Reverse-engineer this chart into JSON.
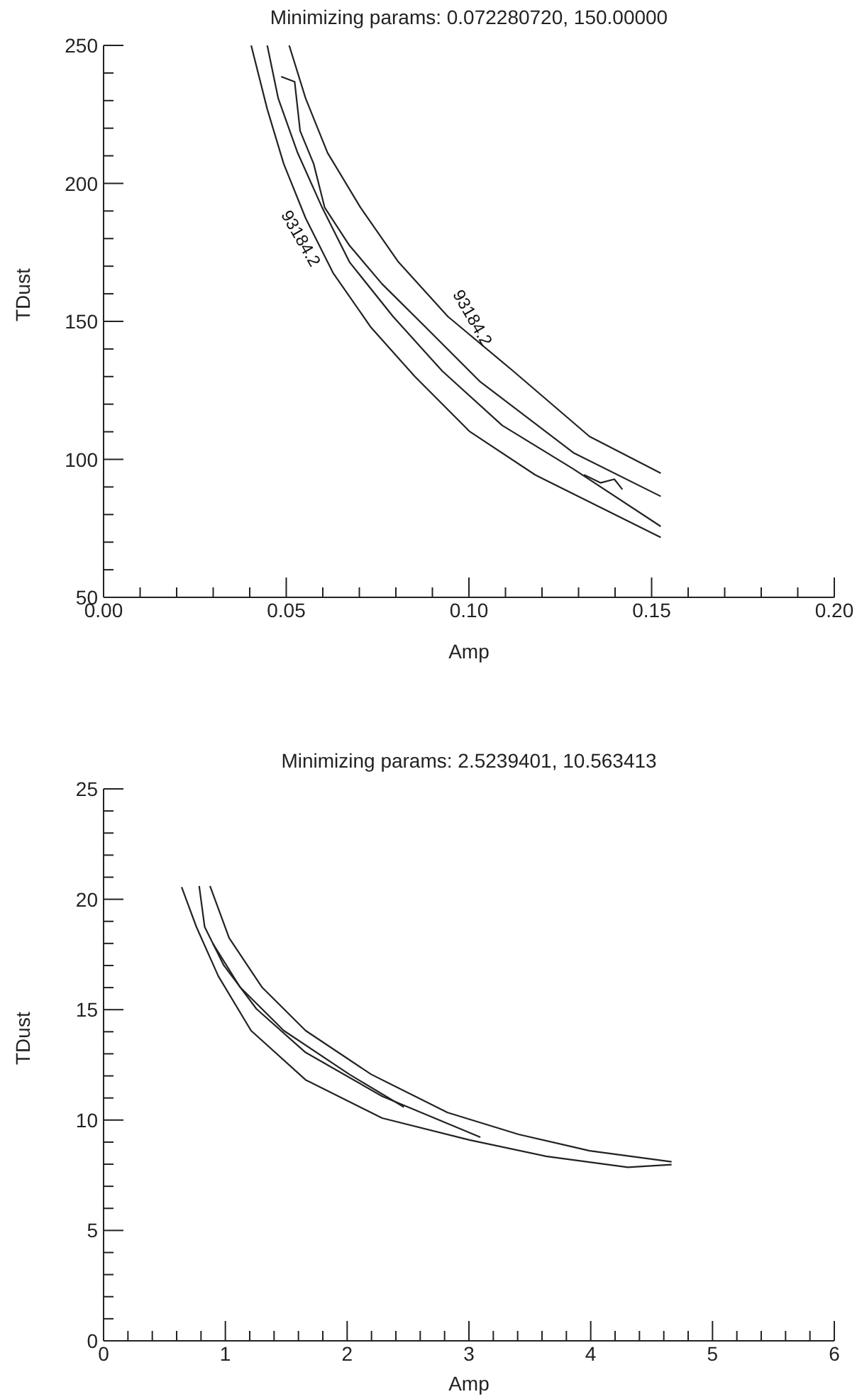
{
  "chart_data": [
    {
      "type": "line",
      "title": "Minimizing params: 0.072280720, 150.00000",
      "xlabel": "Amp",
      "ylabel": "TDust",
      "marker": "none",
      "xlim": [
        0.0,
        0.2
      ],
      "ylim": [
        50,
        250
      ],
      "xticks": [
        {
          "value": 0,
          "label": "0.00"
        },
        {
          "value": 0.01,
          "label": null
        },
        {
          "value": 0.02,
          "label": null
        },
        {
          "value": 0.03,
          "label": null
        },
        {
          "value": 0.04,
          "label": null
        },
        {
          "value": 0.05,
          "label": "0.05"
        },
        {
          "value": 0.06,
          "label": null
        },
        {
          "value": 0.07,
          "label": null
        },
        {
          "value": 0.08,
          "label": null
        },
        {
          "value": 0.09,
          "label": null
        },
        {
          "value": 0.1,
          "label": "0.10"
        },
        {
          "value": 0.11,
          "label": null
        },
        {
          "value": 0.12,
          "label": null
        },
        {
          "value": 0.13,
          "label": null
        },
        {
          "value": 0.14,
          "label": null
        },
        {
          "value": 0.15,
          "label": "0.15"
        },
        {
          "value": 0.16,
          "label": null
        },
        {
          "value": 0.17,
          "label": null
        },
        {
          "value": 0.18,
          "label": null
        },
        {
          "value": 0.19,
          "label": null
        },
        {
          "value": 0.2,
          "label": "0.20"
        }
      ],
      "yticks": [
        50,
        {
          "value": 60,
          "label": null
        },
        {
          "value": 70,
          "label": null
        },
        {
          "value": 80,
          "label": null
        },
        {
          "value": 90,
          "label": null
        },
        100,
        {
          "value": 110,
          "label": null
        },
        {
          "value": 120,
          "label": null
        },
        {
          "value": 130,
          "label": null
        },
        {
          "value": 140,
          "label": null
        },
        150,
        {
          "value": 160,
          "label": null
        },
        {
          "value": 170,
          "label": null
        },
        {
          "value": 180,
          "label": null
        },
        {
          "value": 190,
          "label": null
        },
        200,
        {
          "value": 210,
          "label": null
        },
        {
          "value": 220,
          "label": null
        },
        {
          "value": 230,
          "label": null
        },
        {
          "value": 240,
          "label": null
        },
        250
      ],
      "annotations": [
        "93184.2",
        "93184.2"
      ],
      "series": [
        {
          "color": "#222222",
          "x": [
            0.0404,
            0.0448,
            0.0493,
            0.0553,
            0.0628,
            0.0732,
            0.0852,
            0.1001,
            0.1181,
            0.136,
            0.1525
          ],
          "values": [
            250,
            226.9,
            207.1,
            187.4,
            167.6,
            147.8,
            130.0,
            110.2,
            94.4,
            82.6,
            71.7
          ]
        },
        {
          "color": "#222222",
          "x": [
            0.0448,
            0.0478,
            0.0531,
            0.0598,
            0.0673,
            0.0792,
            0.0927,
            0.1091,
            0.1286,
            0.1525
          ],
          "values": [
            250,
            230.8,
            211.1,
            191.3,
            171.5,
            151.8,
            132.0,
            112.3,
            96.5,
            75.7
          ]
        },
        {
          "color": "#222222",
          "x": [
            0.0486,
            0.0523,
            0.0538,
            0.0575,
            0.0605,
            0.0673,
            0.0762,
            0.0882,
            0.1031,
            0.1286,
            0.1525
          ],
          "values": [
            238.7,
            236.8,
            219.0,
            207.1,
            191.3,
            177.5,
            163.6,
            147.8,
            128.1,
            102.4,
            86.6
          ]
        },
        {
          "color": "#222222",
          "x": [
            0.0508,
            0.0553,
            0.0613,
            0.0703,
            0.0807,
            0.0942,
            0.1121,
            0.133,
            0.1525
          ],
          "values": [
            250,
            230.8,
            211.1,
            191.3,
            171.5,
            151.8,
            132.0,
            108.3,
            95.0
          ]
        },
        {
          "color": "#222222",
          "x": [
            0.1315,
            0.136,
            0.1398,
            0.142
          ],
          "values": [
            94.4,
            91.5,
            92.8,
            89.1
          ]
        }
      ]
    },
    {
      "type": "line",
      "title": "Minimizing params: 2.5239401, 10.563413",
      "xlabel": "Amp",
      "ylabel": "TDust",
      "marker": "none",
      "xlim": [
        0,
        6
      ],
      "ylim": [
        0,
        25
      ],
      "xticks": [
        0,
        {
          "value": 0.2,
          "label": null
        },
        {
          "value": 0.4,
          "label": null
        },
        {
          "value": 0.6,
          "label": null
        },
        {
          "value": 0.8,
          "label": null
        },
        1,
        {
          "value": 1.2,
          "label": null
        },
        {
          "value": 1.4,
          "label": null
        },
        {
          "value": 1.6,
          "label": null
        },
        {
          "value": 1.8,
          "label": null
        },
        2,
        {
          "value": 2.2,
          "label": null
        },
        {
          "value": 2.4,
          "label": null
        },
        {
          "value": 2.6,
          "label": null
        },
        {
          "value": 2.8,
          "label": null
        },
        3,
        {
          "value": 3.2,
          "label": null
        },
        {
          "value": 3.4,
          "label": null
        },
        {
          "value": 3.6,
          "label": null
        },
        {
          "value": 3.8,
          "label": null
        },
        4,
        {
          "value": 4.2,
          "label": null
        },
        {
          "value": 4.4,
          "label": null
        },
        {
          "value": 4.6,
          "label": null
        },
        {
          "value": 4.8,
          "label": null
        },
        5,
        {
          "value": 5.2,
          "label": null
        },
        {
          "value": 5.4,
          "label": null
        },
        {
          "value": 5.6,
          "label": null
        },
        {
          "value": 5.8,
          "label": null
        },
        6
      ],
      "yticks": [
        0,
        {
          "value": 1,
          "label": null
        },
        {
          "value": 2,
          "label": null
        },
        {
          "value": 3,
          "label": null
        },
        {
          "value": 4,
          "label": null
        },
        5,
        {
          "value": 6,
          "label": null
        },
        {
          "value": 7,
          "label": null
        },
        {
          "value": 8,
          "label": null
        },
        {
          "value": 9,
          "label": null
        },
        10,
        {
          "value": 11,
          "label": null
        },
        {
          "value": 12,
          "label": null
        },
        {
          "value": 13,
          "label": null
        },
        {
          "value": 14,
          "label": null
        },
        15,
        {
          "value": 16,
          "label": null
        },
        {
          "value": 17,
          "label": null
        },
        {
          "value": 18,
          "label": null
        },
        {
          "value": 19,
          "label": null
        },
        20,
        {
          "value": 21,
          "label": null
        },
        {
          "value": 22,
          "label": null
        },
        {
          "value": 23,
          "label": null
        },
        {
          "value": 24,
          "label": null
        },
        25
      ],
      "series": [
        {
          "color": "#222222",
          "x": [
            0.641,
            0.762,
            0.942,
            1.211,
            1.659,
            2.287,
            3.004,
            3.632,
            4.305,
            4.664
          ],
          "values": [
            20.55,
            18.75,
            16.52,
            14.05,
            11.82,
            10.09,
            9.1,
            8.36,
            7.86,
            7.98
          ]
        },
        {
          "color": "#222222",
          "x": [
            0.874,
            1.031,
            1.3,
            1.659,
            2.197,
            2.825,
            3.408,
            3.991,
            4.664
          ],
          "values": [
            20.6,
            18.25,
            16.02,
            14.05,
            12.07,
            10.34,
            9.35,
            8.61,
            8.11
          ]
        },
        {
          "color": "#222222",
          "x": [
            0.785,
            0.83,
            0.987,
            1.256,
            1.659,
            2.287,
            3.094
          ],
          "values": [
            20.6,
            18.75,
            17.01,
            15.03,
            13.06,
            11.08,
            9.22
          ]
        },
        {
          "color": "#222222",
          "x": [
            0.897,
            1.121,
            1.48,
            2.018,
            2.466
          ],
          "values": [
            18.0,
            16.02,
            14.05,
            12.07,
            10.59
          ]
        }
      ]
    }
  ]
}
